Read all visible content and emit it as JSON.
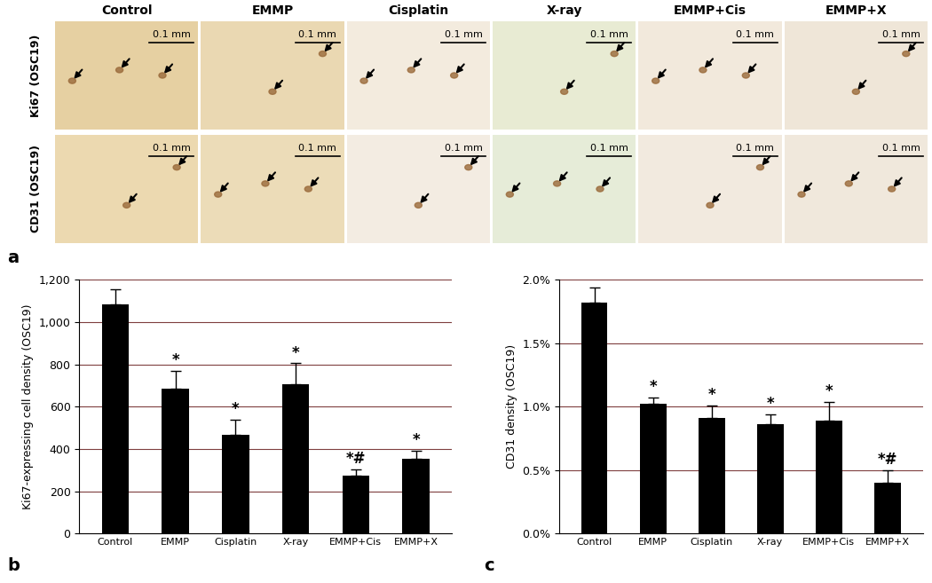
{
  "image_panel": {
    "panel_label": "a",
    "columns": [
      "Control",
      "EMMP",
      "Cisplatin",
      "X-ray",
      "EMMP+Cis",
      "EMMP+X"
    ],
    "rows": [
      "Ki67 (OSC19)",
      "CD31 (OSC19)"
    ],
    "scale_bar": "0.1 mm"
  },
  "chart_data": [
    {
      "type": "bar",
      "panel_label": "b",
      "y_label": "Ki67-expressing cell density (OSC19)",
      "categories": [
        "Control",
        "EMMP",
        "Cisplatin",
        "X-ray",
        "EMMP+Cis",
        "EMMP+X"
      ],
      "values": [
        1085,
        685,
        465,
        705,
        275,
        355
      ],
      "errors": [
        70,
        85,
        75,
        100,
        30,
        35
      ],
      "annotations": [
        null,
        "*",
        "*",
        "*",
        "*#",
        "*"
      ],
      "color": "#000000",
      "ylim": [
        0,
        1200
      ],
      "yticks": [
        0,
        200,
        400,
        600,
        800,
        {
          "value": 1000,
          "label": "1,000"
        },
        {
          "value": 1200,
          "label": "1,200"
        }
      ],
      "grid": true
    },
    {
      "type": "bar",
      "panel_label": "c",
      "y_label": "CD31 density (OSC19)",
      "categories": [
        "Control",
        "EMMP",
        "Cisplatin",
        "X-ray",
        "EMMP+Cis",
        "EMMP+X"
      ],
      "values": [
        1.82,
        1.02,
        0.91,
        0.86,
        0.89,
        0.4
      ],
      "errors": [
        0.12,
        0.05,
        0.1,
        0.08,
        0.15,
        0.1
      ],
      "annotations": [
        null,
        "*",
        "*",
        "*",
        "*",
        "*#"
      ],
      "color": "#000000",
      "ylim": [
        0,
        2.0
      ],
      "yticks": [
        {
          "value": 0,
          "label": "0.0%"
        },
        {
          "value": 0.5,
          "label": "0.5%"
        },
        {
          "value": 1.0,
          "label": "1.0%"
        },
        {
          "value": 1.5,
          "label": "1.5%"
        },
        {
          "value": 2.0,
          "label": "2.0%"
        }
      ],
      "grid": true
    }
  ]
}
